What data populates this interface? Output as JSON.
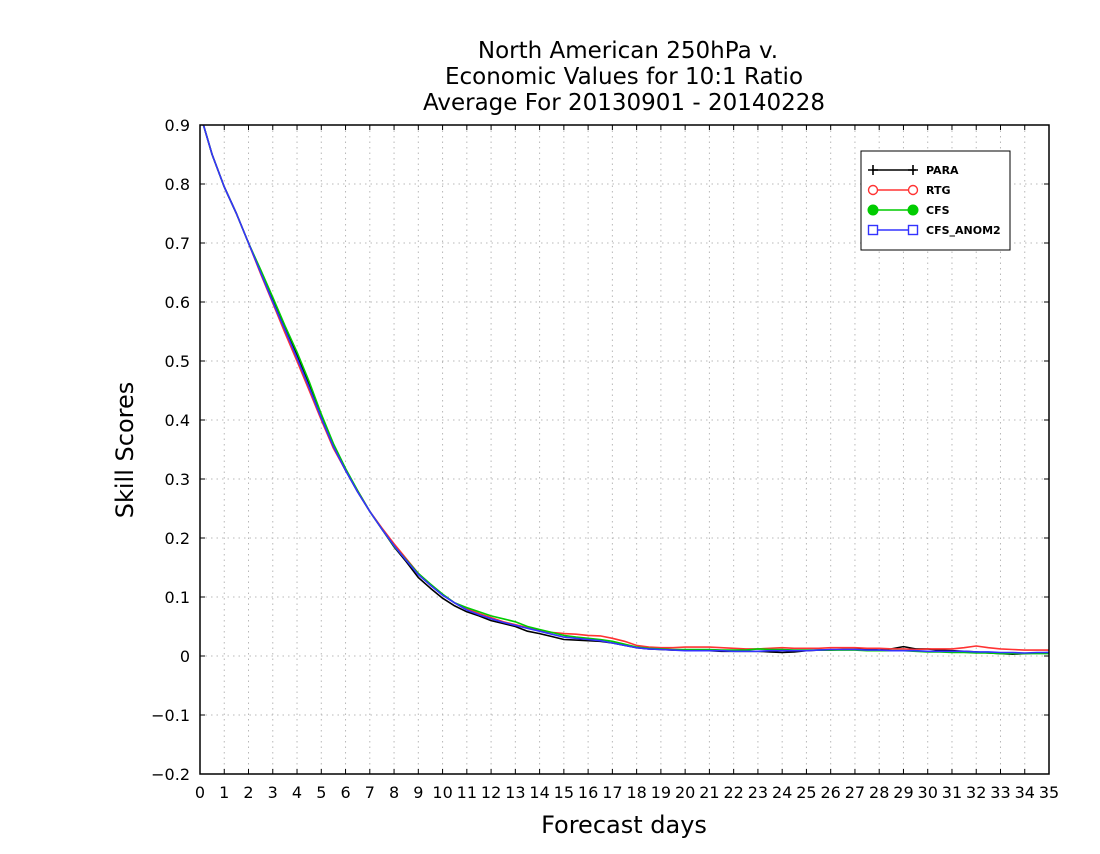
{
  "chart_data": {
    "type": "line",
    "title_lines": [
      "North American 250hPa v.",
      "Economic Values for 10:1 Ratio",
      "Average For 20130901 - 20140228"
    ],
    "xlabel": "Forecast days",
    "ylabel": "Skill Scores",
    "xlim": [
      0,
      35
    ],
    "ylim": [
      -0.2,
      0.9
    ],
    "xticks": [
      0,
      1,
      2,
      3,
      4,
      5,
      6,
      7,
      8,
      9,
      10,
      11,
      12,
      13,
      14,
      15,
      16,
      17,
      18,
      19,
      20,
      21,
      22,
      23,
      24,
      25,
      26,
      27,
      28,
      29,
      30,
      31,
      32,
      33,
      34,
      35
    ],
    "yticks": [
      -0.2,
      -0.1,
      0,
      0.1,
      0.2,
      0.3,
      0.4,
      0.5,
      0.6,
      0.7,
      0.8,
      0.9
    ],
    "ytick_labels": [
      "−0.2",
      "−0.1",
      "0",
      "0.1",
      "0.2",
      "0.3",
      "0.4",
      "0.5",
      "0.6",
      "0.7",
      "0.8",
      "0.9"
    ],
    "grid": true,
    "legend_position": "top-right",
    "x": [
      0,
      0.5,
      1,
      1.5,
      2,
      2.5,
      3,
      3.5,
      4,
      4.5,
      5,
      5.5,
      6,
      6.5,
      7,
      7.5,
      8,
      8.5,
      9,
      9.5,
      10,
      10.5,
      11,
      11.5,
      12,
      12.5,
      13,
      13.5,
      14,
      14.5,
      15,
      15.5,
      16,
      16.5,
      17,
      17.5,
      18,
      18.5,
      19,
      19.5,
      20,
      20.5,
      21,
      21.5,
      22,
      22.5,
      23,
      23.5,
      24,
      24.5,
      25,
      25.5,
      26,
      26.5,
      27,
      27.5,
      28,
      28.5,
      29,
      29.5,
      30,
      30.5,
      31,
      31.5,
      32,
      32.5,
      33,
      33.5,
      34,
      34.5,
      35
    ],
    "series": [
      {
        "name": "PARA",
        "color": "#000000",
        "marker": "plus",
        "values": [
          0.92,
          0.85,
          0.795,
          0.75,
          0.7,
          0.652,
          0.603,
          0.555,
          0.51,
          0.46,
          0.405,
          0.355,
          0.315,
          0.278,
          0.245,
          0.215,
          0.185,
          0.16,
          0.133,
          0.115,
          0.098,
          0.085,
          0.075,
          0.068,
          0.06,
          0.055,
          0.05,
          0.042,
          0.038,
          0.033,
          0.028,
          0.027,
          0.026,
          0.025,
          0.022,
          0.018,
          0.014,
          0.012,
          0.011,
          0.01,
          0.01,
          0.01,
          0.009,
          0.008,
          0.008,
          0.008,
          0.008,
          0.007,
          0.006,
          0.007,
          0.009,
          0.01,
          0.01,
          0.011,
          0.011,
          0.012,
          0.01,
          0.012,
          0.016,
          0.012,
          0.012,
          0.01,
          0.009,
          0.008,
          0.007,
          0.005,
          0.004,
          0.003,
          0.004,
          0.005,
          0.006
        ]
      },
      {
        "name": "RTG",
        "color": "#ff3333",
        "marker": "circle-open",
        "values": [
          0.92,
          0.85,
          0.795,
          0.75,
          0.7,
          0.648,
          0.598,
          0.548,
          0.5,
          0.45,
          0.4,
          0.352,
          0.315,
          0.28,
          0.245,
          0.217,
          0.19,
          0.165,
          0.14,
          0.12,
          0.104,
          0.09,
          0.08,
          0.072,
          0.065,
          0.058,
          0.053,
          0.048,
          0.043,
          0.04,
          0.038,
          0.037,
          0.035,
          0.034,
          0.03,
          0.025,
          0.018,
          0.015,
          0.014,
          0.014,
          0.015,
          0.015,
          0.015,
          0.014,
          0.013,
          0.012,
          0.012,
          0.013,
          0.014,
          0.013,
          0.013,
          0.013,
          0.014,
          0.014,
          0.014,
          0.013,
          0.013,
          0.012,
          0.012,
          0.011,
          0.012,
          0.012,
          0.012,
          0.014,
          0.017,
          0.014,
          0.012,
          0.011,
          0.01,
          0.01,
          0.01
        ]
      },
      {
        "name": "CFS",
        "color": "#00cc00",
        "marker": "circle-filled",
        "values": [
          0.92,
          0.85,
          0.795,
          0.75,
          0.7,
          0.655,
          0.608,
          0.56,
          0.515,
          0.465,
          0.41,
          0.36,
          0.318,
          0.28,
          0.245,
          0.215,
          0.186,
          0.163,
          0.14,
          0.122,
          0.105,
          0.09,
          0.082,
          0.075,
          0.068,
          0.063,
          0.058,
          0.05,
          0.045,
          0.04,
          0.035,
          0.032,
          0.03,
          0.028,
          0.025,
          0.02,
          0.015,
          0.013,
          0.012,
          0.011,
          0.011,
          0.011,
          0.011,
          0.01,
          0.01,
          0.01,
          0.012,
          0.011,
          0.011,
          0.01,
          0.01,
          0.01,
          0.01,
          0.01,
          0.01,
          0.009,
          0.009,
          0.009,
          0.009,
          0.008,
          0.007,
          0.007,
          0.006,
          0.006,
          0.005,
          0.005,
          0.004,
          0.004,
          0.004,
          0.004,
          0.004
        ]
      },
      {
        "name": "CFS_ANOM2",
        "color": "#3333ff",
        "marker": "square-open",
        "values": [
          0.92,
          0.85,
          0.795,
          0.75,
          0.7,
          0.65,
          0.6,
          0.553,
          0.505,
          0.455,
          0.403,
          0.355,
          0.315,
          0.278,
          0.245,
          0.215,
          0.187,
          0.162,
          0.138,
          0.12,
          0.103,
          0.09,
          0.078,
          0.07,
          0.063,
          0.057,
          0.052,
          0.047,
          0.042,
          0.037,
          0.032,
          0.03,
          0.028,
          0.026,
          0.022,
          0.018,
          0.014,
          0.012,
          0.011,
          0.01,
          0.009,
          0.009,
          0.009,
          0.009,
          0.008,
          0.008,
          0.008,
          0.009,
          0.009,
          0.009,
          0.009,
          0.01,
          0.011,
          0.011,
          0.011,
          0.01,
          0.01,
          0.009,
          0.009,
          0.009,
          0.008,
          0.008,
          0.008,
          0.008,
          0.007,
          0.007,
          0.006,
          0.006,
          0.005,
          0.006,
          0.006
        ]
      }
    ]
  }
}
